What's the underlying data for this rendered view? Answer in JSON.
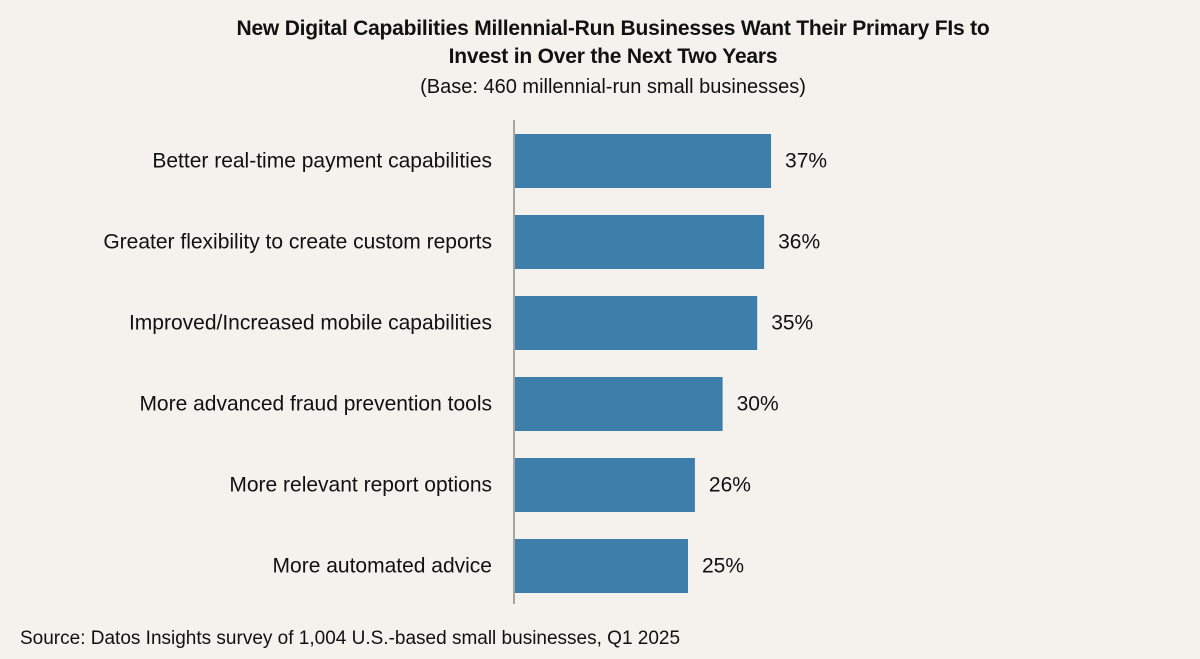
{
  "title_line1": "New Digital Capabilities Millennial-Run Businesses Want Their Primary FIs to",
  "title_line2": "Invest in Over the Next Two Years",
  "subtitle": "(Base: 460 millennial-run small businesses)",
  "source": "Source: Datos Insights survey of 1,004 U.S.-based small businesses, Q1 2025",
  "colors": {
    "bar": "#3d7eaa",
    "axis": "#8c8c8c",
    "background": "#f5f1ec"
  },
  "chart_data": {
    "type": "bar",
    "orientation": "horizontal",
    "categories": [
      "Better real-time payment capabilities",
      "Greater flexibility to create custom reports",
      "Improved/Increased mobile capabilities",
      "More advanced fraud prevention tools",
      "More relevant report options",
      "More automated advice"
    ],
    "values": [
      37,
      36,
      35,
      30,
      26,
      25
    ],
    "value_labels": [
      "37%",
      "36%",
      "35%",
      "30%",
      "26%",
      "25%"
    ],
    "unit": "%",
    "grid": false,
    "legend": "none"
  }
}
